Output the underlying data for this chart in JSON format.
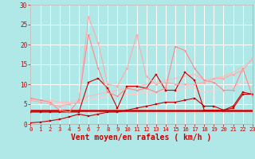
{
  "background_color": "#b0e8e8",
  "grid_color": "#ffffff",
  "xlabel": "Vent moyen/en rafales ( km/h )",
  "xlabel_color": "#cc0000",
  "xlabel_fontsize": 7,
  "tick_color": "#cc0000",
  "ylim": [
    0,
    30
  ],
  "xlim": [
    0,
    23
  ],
  "yticks": [
    0,
    5,
    10,
    15,
    20,
    25,
    30
  ],
  "xticks": [
    0,
    1,
    2,
    3,
    4,
    5,
    6,
    7,
    8,
    9,
    10,
    11,
    12,
    13,
    14,
    15,
    16,
    17,
    18,
    19,
    20,
    21,
    22,
    23
  ],
  "series": [
    {
      "x": [
        0,
        1,
        2,
        3,
        4,
        5,
        6,
        7,
        8,
        9,
        10,
        11,
        12,
        13,
        14,
        15,
        16,
        17,
        18,
        19,
        20,
        21,
        22,
        23
      ],
      "y": [
        0.3,
        0.5,
        0.8,
        1.2,
        1.8,
        2.5,
        2.0,
        2.5,
        3.0,
        3.0,
        3.5,
        4.0,
        4.5,
        5.0,
        5.5,
        5.5,
        6.0,
        6.5,
        4.5,
        4.5,
        3.5,
        4.0,
        7.5,
        7.5
      ],
      "color": "#cc0000",
      "lw": 0.8,
      "marker": "s",
      "ms": 1.5
    },
    {
      "x": [
        0,
        1,
        2,
        3,
        4,
        5,
        6,
        7,
        8,
        9,
        10,
        11,
        12,
        13,
        14,
        15,
        16,
        17,
        18,
        19,
        20,
        21,
        22,
        23
      ],
      "y": [
        3.0,
        3.0,
        3.0,
        3.0,
        3.0,
        3.0,
        10.5,
        11.5,
        9.0,
        4.0,
        9.5,
        9.5,
        9.0,
        12.5,
        8.5,
        8.5,
        13.0,
        11.0,
        3.5,
        3.5,
        3.5,
        4.5,
        8.0,
        7.5
      ],
      "color": "#cc0000",
      "lw": 0.8,
      "marker": "s",
      "ms": 1.5
    },
    {
      "x": [
        0,
        1,
        2,
        3,
        4,
        5,
        6,
        7,
        8,
        9,
        10,
        11,
        12,
        13,
        14,
        15,
        16,
        17,
        18,
        19,
        20,
        21,
        22,
        23
      ],
      "y": [
        6.5,
        6.0,
        5.5,
        3.5,
        3.0,
        6.0,
        22.5,
        14.0,
        8.0,
        7.0,
        9.0,
        8.5,
        9.0,
        8.0,
        9.0,
        19.5,
        18.5,
        14.0,
        11.0,
        10.5,
        8.5,
        8.5,
        14.0,
        7.0
      ],
      "color": "#ff8888",
      "lw": 0.8,
      "marker": "v",
      "ms": 1.5
    },
    {
      "x": [
        0,
        1,
        2,
        3,
        4,
        5,
        6,
        7,
        8,
        9,
        10,
        11,
        12,
        13,
        14,
        15,
        16,
        17,
        18,
        19,
        20,
        21,
        22,
        23
      ],
      "y": [
        6.0,
        5.5,
        5.0,
        4.5,
        5.0,
        5.5,
        27.0,
        20.5,
        10.0,
        9.5,
        14.0,
        22.5,
        12.0,
        10.0,
        10.5,
        10.0,
        10.0,
        10.0,
        10.5,
        11.5,
        11.5,
        12.5,
        13.5,
        16.5
      ],
      "color": "#ffaaaa",
      "lw": 0.8,
      "marker": "D",
      "ms": 1.5
    },
    {
      "x": [
        0,
        1,
        2,
        3,
        4,
        5,
        6,
        7,
        8,
        9,
        10,
        11,
        12,
        13,
        14,
        15,
        16,
        17,
        18,
        19,
        20,
        21,
        22,
        23
      ],
      "y": [
        6.5,
        6.0,
        6.0,
        5.5,
        5.5,
        6.0,
        7.0,
        7.5,
        8.0,
        8.5,
        9.0,
        9.5,
        10.0,
        10.5,
        11.0,
        11.5,
        12.0,
        12.5,
        11.0,
        11.5,
        12.0,
        13.0,
        14.5,
        16.0
      ],
      "color": "#ffbbbb",
      "lw": 0.9,
      "marker": "None",
      "ms": 0
    },
    {
      "x": [
        0,
        1,
        2,
        3,
        4,
        5,
        6,
        7,
        8,
        9,
        10,
        11,
        12,
        13,
        14,
        15,
        16,
        17,
        18,
        19,
        20,
        21,
        22,
        23
      ],
      "y": [
        6.5,
        6.0,
        5.5,
        5.0,
        5.0,
        5.5,
        6.0,
        6.5,
        7.0,
        7.0,
        7.5,
        7.5,
        8.0,
        8.0,
        8.5,
        8.5,
        9.0,
        9.0,
        8.0,
        8.5,
        8.5,
        9.5,
        10.5,
        11.0
      ],
      "color": "#ffcccc",
      "lw": 0.9,
      "marker": "None",
      "ms": 0
    },
    {
      "x": [
        0,
        1,
        2,
        3,
        4,
        5,
        6,
        7,
        8,
        9,
        10,
        11,
        12,
        13,
        14,
        15,
        16,
        17,
        18,
        19,
        20,
        21,
        22,
        23
      ],
      "y": [
        3.5,
        3.5,
        3.5,
        3.5,
        3.5,
        3.5,
        3.5,
        3.5,
        3.5,
        3.5,
        3.5,
        3.5,
        3.5,
        3.5,
        3.5,
        3.5,
        3.5,
        3.5,
        3.5,
        3.5,
        3.5,
        3.5,
        3.5,
        3.5
      ],
      "color": "#cc0000",
      "lw": 1.8,
      "marker": "None",
      "ms": 0
    }
  ]
}
